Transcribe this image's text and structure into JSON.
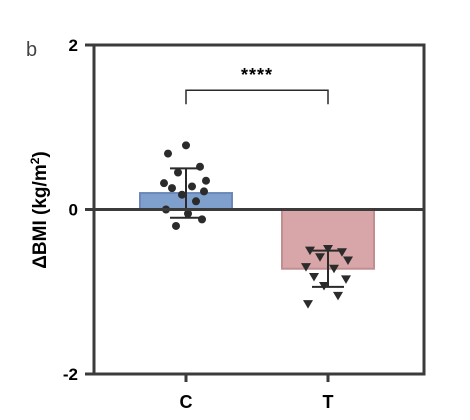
{
  "panel_label": "b",
  "chart_data": {
    "type": "bar",
    "ylabel": "ΔBMI (kg/m²)",
    "ylabel_parts": {
      "main": "ΔBMI (kg/m",
      "sup": "2",
      "close": ")"
    },
    "categories": [
      "C",
      "T"
    ],
    "ylim": [
      -2,
      2
    ],
    "yticks": [
      {
        "value": 2,
        "label": "2"
      },
      {
        "value": 0,
        "label": "0"
      },
      {
        "value": -2,
        "label": "-2"
      }
    ],
    "grid": false,
    "legend": "none",
    "series": [
      {
        "category": "C",
        "mean": 0.2,
        "sd": 0.3,
        "bar_color": "#7f9fcd",
        "bar_edge": "#6a88b8",
        "marker": "circle",
        "points": [
          0.78,
          0.68,
          0.52,
          0.45,
          0.35,
          0.32,
          0.28,
          0.26,
          0.22,
          0.18,
          0.1,
          0.0,
          -0.05,
          -0.12,
          -0.2
        ]
      },
      {
        "category": "T",
        "mean": -0.72,
        "sd": 0.22,
        "bar_color": "#d8a6a8",
        "bar_edge": "#c08e90",
        "marker": "triangle-down",
        "points": [
          -0.48,
          -0.5,
          -0.52,
          -0.58,
          -0.62,
          -0.7,
          -0.72,
          -0.82,
          -0.85,
          -0.93,
          -1.05,
          -1.15
        ]
      }
    ],
    "significance": {
      "pair": [
        "C",
        "T"
      ],
      "label": "****",
      "y": 1.45
    }
  }
}
